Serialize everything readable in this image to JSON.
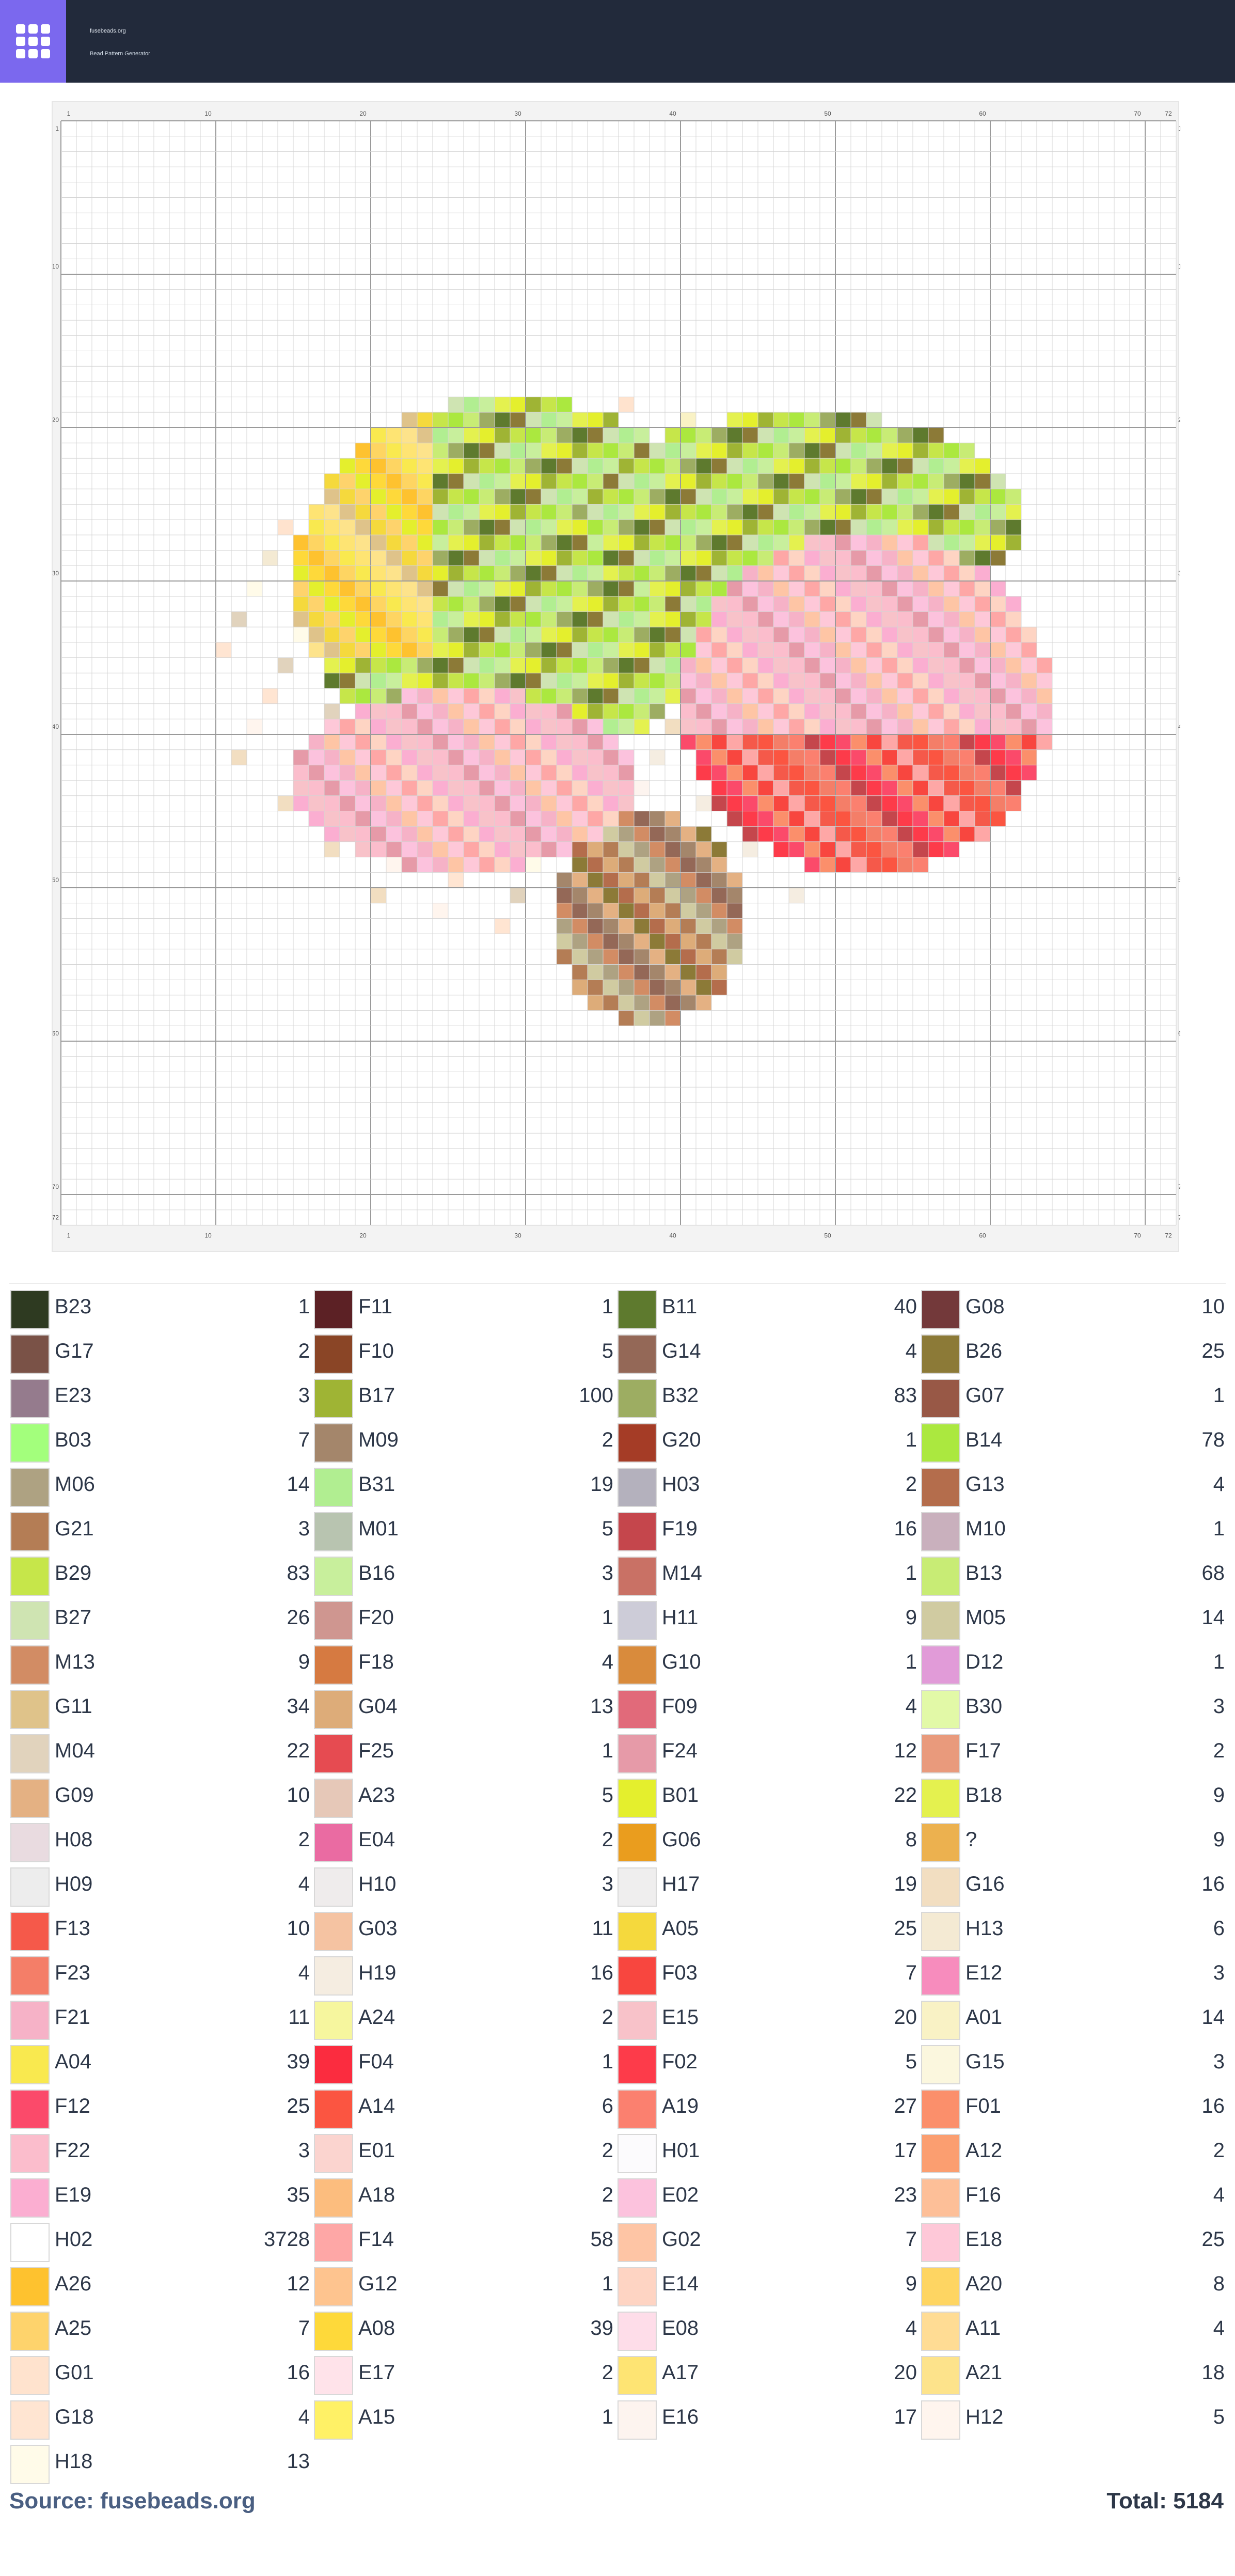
{
  "header": {
    "domain": "fusebeads.org",
    "tagline": "Bead Pattern Generator",
    "logo_icon": "grid-icon",
    "logo_color": "#7b68ee",
    "bar_color": "#222a3b"
  },
  "grid": {
    "columns": 72,
    "rows": 72,
    "col_ticks": [
      "1",
      "10",
      "20",
      "30",
      "40",
      "50",
      "60",
      "70",
      "72"
    ],
    "row_ticks": [
      "1",
      "10",
      "20",
      "30",
      "40",
      "50",
      "60",
      "70",
      "72"
    ],
    "background_code": "H02",
    "background_color": "#ffffff"
  },
  "legend": [
    {
      "code": "B23",
      "count": "1",
      "color": "#2e3a21"
    },
    {
      "code": "F11",
      "count": "1",
      "color": "#5c2125"
    },
    {
      "code": "B11",
      "count": "40",
      "color": "#5e7a2e"
    },
    {
      "code": "G08",
      "count": "10",
      "color": "#73393a"
    },
    {
      "code": "G17",
      "count": "2",
      "color": "#7a5247"
    },
    {
      "code": "F10",
      "count": "5",
      "color": "#8a4526"
    },
    {
      "code": "G14",
      "count": "4",
      "color": "#946857"
    },
    {
      "code": "B26",
      "count": "25",
      "color": "#8c7a37"
    },
    {
      "code": "E23",
      "count": "3",
      "color": "#957b8d"
    },
    {
      "code": "B17",
      "count": "100",
      "color": "#9fb434"
    },
    {
      "code": "B32",
      "count": "83",
      "color": "#9dad62"
    },
    {
      "code": "G07",
      "count": "1",
      "color": "#985846"
    },
    {
      "code": "B03",
      "count": "7",
      "color": "#a3ff7c"
    },
    {
      "code": "M09",
      "count": "2",
      "color": "#a4866b"
    },
    {
      "code": "G20",
      "count": "1",
      "color": "#a53c26"
    },
    {
      "code": "B14",
      "count": "78",
      "color": "#abe83f"
    },
    {
      "code": "M06",
      "count": "14",
      "color": "#aea282"
    },
    {
      "code": "B31",
      "count": "19",
      "color": "#b1ee91"
    },
    {
      "code": "H03",
      "count": "2",
      "color": "#b4b1bd"
    },
    {
      "code": "G13",
      "count": "4",
      "color": "#b46d4c"
    },
    {
      "code": "G21",
      "count": "3",
      "color": "#b47d55"
    },
    {
      "code": "M01",
      "count": "5",
      "color": "#b8c4b0"
    },
    {
      "code": "F19",
      "count": "16",
      "color": "#c5464c"
    },
    {
      "code": "M10",
      "count": "1",
      "color": "#c9b0bd"
    },
    {
      "code": "B29",
      "count": "83",
      "color": "#c6e64a"
    },
    {
      "code": "B16",
      "count": "3",
      "color": "#c8ef9c"
    },
    {
      "code": "M14",
      "count": "1",
      "color": "#c97165"
    },
    {
      "code": "B13",
      "count": "68",
      "color": "#c8ec75"
    },
    {
      "code": "B27",
      "count": "26",
      "color": "#cfe4b2"
    },
    {
      "code": "F20",
      "count": "1",
      "color": "#cf9690"
    },
    {
      "code": "H11",
      "count": "9",
      "color": "#cdccd8"
    },
    {
      "code": "M05",
      "count": "14",
      "color": "#d0cba1"
    },
    {
      "code": "M13",
      "count": "9",
      "color": "#d28c64"
    },
    {
      "code": "F18",
      "count": "4",
      "color": "#d67a41"
    },
    {
      "code": "G10",
      "count": "1",
      "color": "#d98b3c"
    },
    {
      "code": "D12",
      "count": "1",
      "color": "#e19bd8"
    },
    {
      "code": "G11",
      "count": "34",
      "color": "#dfc38a"
    },
    {
      "code": "G04",
      "count": "13",
      "color": "#ddac79"
    },
    {
      "code": "F09",
      "count": "4",
      "color": "#e16a7a"
    },
    {
      "code": "B30",
      "count": "3",
      "color": "#e2f9a7"
    },
    {
      "code": "M04",
      "count": "22",
      "color": "#e1d3bd"
    },
    {
      "code": "F25",
      "count": "1",
      "color": "#e64b51"
    },
    {
      "code": "F24",
      "count": "12",
      "color": "#e69aa8"
    },
    {
      "code": "F17",
      "count": "2",
      "color": "#e99a7c"
    },
    {
      "code": "G09",
      "count": "10",
      "color": "#e4b183"
    },
    {
      "code": "A23",
      "count": "5",
      "color": "#e6c8b8"
    },
    {
      "code": "B01",
      "count": "22",
      "color": "#e4ef2d"
    },
    {
      "code": "B18",
      "count": "9",
      "color": "#e4f14f"
    },
    {
      "code": "H08",
      "count": "2",
      "color": "#e9dbe0"
    },
    {
      "code": "E04",
      "count": "2",
      "color": "#ea6ba2"
    },
    {
      "code": "G06",
      "count": "8",
      "color": "#ea9d1e"
    },
    {
      "code": "?",
      "count": "9",
      "color": "#ecb14f"
    },
    {
      "code": "H09",
      "count": "4",
      "color": "#ededed"
    },
    {
      "code": "H10",
      "count": "3",
      "color": "#efecec"
    },
    {
      "code": "H17",
      "count": "19",
      "color": "#efeeee"
    },
    {
      "code": "G16",
      "count": "16",
      "color": "#f2dec1"
    },
    {
      "code": "F13",
      "count": "10",
      "color": "#f5594a"
    },
    {
      "code": "G03",
      "count": "11",
      "color": "#f5c3a2"
    },
    {
      "code": "A05",
      "count": "25",
      "color": "#f5d93d"
    },
    {
      "code": "H13",
      "count": "6",
      "color": "#f4ead3"
    },
    {
      "code": "F23",
      "count": "4",
      "color": "#f47e68"
    },
    {
      "code": "H19",
      "count": "16",
      "color": "#f5ede1"
    },
    {
      "code": "F03",
      "count": "7",
      "color": "#f8463f"
    },
    {
      "code": "E12",
      "count": "3",
      "color": "#f78cbd"
    },
    {
      "code": "F21",
      "count": "11",
      "color": "#f6b2c7"
    },
    {
      "code": "A24",
      "count": "2",
      "color": "#f6f69e"
    },
    {
      "code": "E15",
      "count": "20",
      "color": "#f8c2c9"
    },
    {
      "code": "A01",
      "count": "14",
      "color": "#f9f2c5"
    },
    {
      "code": "A04",
      "count": "39",
      "color": "#f9e94f"
    },
    {
      "code": "F04",
      "count": "1",
      "color": "#fb2c3f"
    },
    {
      "code": "F02",
      "count": "5",
      "color": "#fd3b4a"
    },
    {
      "code": "G15",
      "count": "3",
      "color": "#fbf7de"
    },
    {
      "code": "F12",
      "count": "25",
      "color": "#fb4a6a"
    },
    {
      "code": "A14",
      "count": "6",
      "color": "#fb5541"
    },
    {
      "code": "A19",
      "count": "27",
      "color": "#fb806f"
    },
    {
      "code": "F01",
      "count": "16",
      "color": "#fb8f6b"
    },
    {
      "code": "F22",
      "count": "3",
      "color": "#fbbdcc"
    },
    {
      "code": "E01",
      "count": "2",
      "color": "#fbd4cf"
    },
    {
      "code": "H01",
      "count": "17",
      "color": "#fcfbfd"
    },
    {
      "code": "A12",
      "count": "2",
      "color": "#fb9e70"
    },
    {
      "code": "E19",
      "count": "35",
      "color": "#fbaed1"
    },
    {
      "code": "A18",
      "count": "2",
      "color": "#fcbd7e"
    },
    {
      "code": "E02",
      "count": "23",
      "color": "#fcc2dd"
    },
    {
      "code": "F16",
      "count": "4",
      "color": "#fdbf98"
    },
    {
      "code": "H02",
      "count": "3728",
      "color": "#ffffff"
    },
    {
      "code": "F14",
      "count": "58",
      "color": "#fea7a6"
    },
    {
      "code": "G02",
      "count": "7",
      "color": "#fec5a5"
    },
    {
      "code": "E18",
      "count": "25",
      "color": "#fec8d8"
    },
    {
      "code": "A26",
      "count": "12",
      "color": "#fec22f"
    },
    {
      "code": "G12",
      "count": "1",
      "color": "#fec48f"
    },
    {
      "code": "E14",
      "count": "9",
      "color": "#fed4c3"
    },
    {
      "code": "A20",
      "count": "8",
      "color": "#fed562"
    },
    {
      "code": "A25",
      "count": "7",
      "color": "#fed36c"
    },
    {
      "code": "A08",
      "count": "39",
      "color": "#fed93a"
    },
    {
      "code": "E08",
      "count": "4",
      "color": "#fedde9"
    },
    {
      "code": "A11",
      "count": "4",
      "color": "#ffdc94"
    },
    {
      "code": "G01",
      "count": "16",
      "color": "#ffe3ce"
    },
    {
      "code": "E17",
      "count": "2",
      "color": "#ffe3ea"
    },
    {
      "code": "A17",
      "count": "20",
      "color": "#fee473"
    },
    {
      "code": "A21",
      "count": "18",
      "color": "#fde38b"
    },
    {
      "code": "G18",
      "count": "4",
      "color": "#ffe5d2"
    },
    {
      "code": "A15",
      "count": "1",
      "color": "#fff166"
    },
    {
      "code": "E16",
      "count": "17",
      "color": "#fdf4ef"
    },
    {
      "code": "H12",
      "count": "5",
      "color": "#fff5ee"
    },
    {
      "code": "H18",
      "count": "13",
      "color": "#fffbe9"
    }
  ],
  "footer": {
    "source": "Source: fusebeads.org",
    "total": "Total: 5184"
  }
}
